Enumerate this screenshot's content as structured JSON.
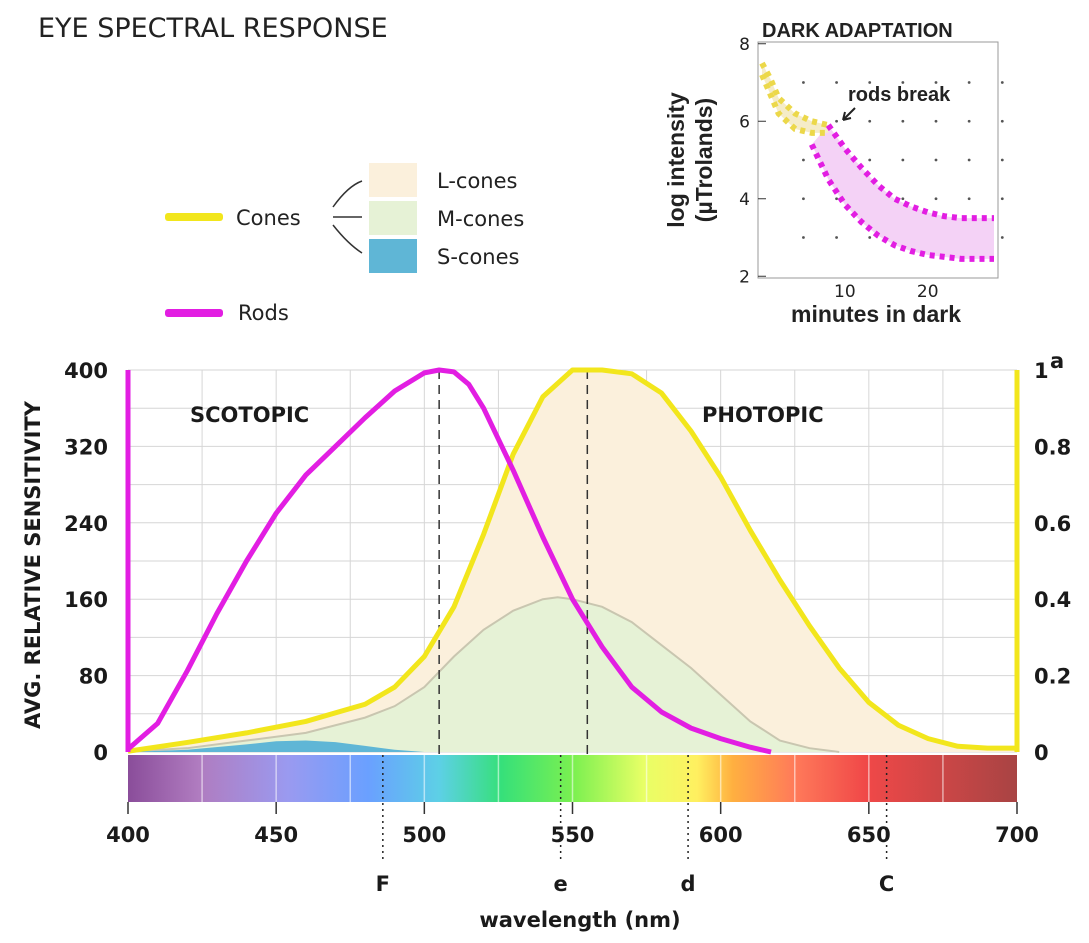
{
  "page_title": "EYE SPECTRAL RESPONSE",
  "legend": {
    "cones_label": "Cones",
    "rods_label": "Rods",
    "cone_types": [
      "L-cones",
      "M-cones",
      "S-cones"
    ]
  },
  "colors": {
    "cones": "#f2e61c",
    "rods": "#e21ee2",
    "l_cones_fill": "#fbf0dc",
    "m_cones_fill": "#e6f2d6",
    "s_cones_fill": "#5fb6d6"
  },
  "chart_data": [
    {
      "type": "line",
      "region_labels": [
        "SCOTOPIC",
        "PHOTOPIC"
      ],
      "xlabel": "wavelength (nm)",
      "ylabel": "AVG. RELATIVE SENSITIVITY",
      "xlim": [
        400,
        700
      ],
      "ylim": [
        0,
        400
      ],
      "y2lim": [
        0,
        1
      ],
      "x_ticks": [
        400,
        450,
        500,
        550,
        600,
        650,
        700
      ],
      "y_ticks": [
        0,
        80,
        160,
        240,
        320,
        400
      ],
      "y2_ticks": [
        "0",
        "0.2",
        "0.4",
        "0.6",
        "0.8",
        "1"
      ],
      "y2_superscript": "a",
      "grid": true,
      "spectral_lines": [
        {
          "label": "F",
          "x": 486
        },
        {
          "label": "e",
          "x": 546
        },
        {
          "label": "d",
          "x": 589
        },
        {
          "label": "C",
          "x": 656
        }
      ],
      "peak_markers": [
        505,
        555
      ],
      "series": [
        {
          "name": "Rods",
          "x": [
            400,
            410,
            420,
            430,
            440,
            450,
            460,
            470,
            480,
            490,
            500,
            505,
            510,
            515,
            520,
            530,
            540,
            550,
            560,
            570,
            580,
            590,
            600,
            610,
            617
          ],
          "values": [
            3,
            30,
            85,
            145,
            200,
            250,
            290,
            320,
            350,
            378,
            397,
            400,
            398,
            385,
            360,
            295,
            225,
            160,
            110,
            68,
            42,
            25,
            14,
            5,
            0
          ]
        },
        {
          "name": "Cones",
          "x": [
            400,
            420,
            440,
            460,
            480,
            490,
            500,
            510,
            520,
            530,
            540,
            550,
            560,
            570,
            580,
            590,
            600,
            610,
            620,
            630,
            640,
            650,
            660,
            670,
            680,
            690,
            700
          ],
          "values": [
            0.002,
            0.025,
            0.05,
            0.08,
            0.125,
            0.17,
            0.25,
            0.38,
            0.57,
            0.78,
            0.93,
            1.0,
            1.0,
            0.99,
            0.94,
            0.84,
            0.72,
            0.58,
            0.45,
            0.33,
            0.22,
            0.13,
            0.07,
            0.035,
            0.015,
            0.01,
            0.01
          ]
        },
        {
          "name": "L-cones",
          "x": [
            400,
            420,
            440,
            460,
            480,
            490,
            500,
            510,
            520,
            530,
            540,
            550,
            560,
            570,
            580,
            590,
            600,
            610,
            620,
            630,
            640,
            650,
            660,
            670,
            680,
            690,
            700
          ],
          "values": [
            0.002,
            0.025,
            0.05,
            0.08,
            0.125,
            0.17,
            0.25,
            0.38,
            0.57,
            0.78,
            0.93,
            1.0,
            1.0,
            0.99,
            0.94,
            0.84,
            0.72,
            0.58,
            0.45,
            0.33,
            0.22,
            0.13,
            0.07,
            0.035,
            0.015,
            0.01,
            0.01
          ]
        },
        {
          "name": "M-cones",
          "x": [
            400,
            420,
            440,
            460,
            480,
            490,
            500,
            510,
            520,
            530,
            540,
            545,
            550,
            560,
            570,
            580,
            590,
            600,
            610,
            620,
            630,
            640
          ],
          "values": [
            0.001,
            0.01,
            0.03,
            0.05,
            0.09,
            0.12,
            0.17,
            0.25,
            0.32,
            0.37,
            0.4,
            0.405,
            0.4,
            0.38,
            0.34,
            0.28,
            0.22,
            0.15,
            0.08,
            0.03,
            0.01,
            0.0
          ]
        },
        {
          "name": "S-cones",
          "x": [
            400,
            420,
            440,
            450,
            460,
            470,
            480,
            490,
            500
          ],
          "values": [
            0.0,
            0.006,
            0.02,
            0.028,
            0.03,
            0.026,
            0.016,
            0.006,
            0.0
          ]
        }
      ]
    },
    {
      "type": "line",
      "title": "DARK ADAPTATION",
      "xlabel": "minutes in dark",
      "ylabel": "log intensity (µTrolands)",
      "xlim": [
        0,
        28
      ],
      "ylim": [
        1.8,
        8.2
      ],
      "x_ticks": [
        10,
        20
      ],
      "y_ticks": [
        2,
        4,
        6,
        8
      ],
      "annotation": "rods break",
      "series": [
        {
          "name": "Cones",
          "x": [
            0,
            1,
            2,
            4,
            6,
            8
          ],
          "values": [
            7.5,
            7.1,
            6.6,
            6.2,
            6.0,
            5.9
          ]
        },
        {
          "name": "Cones",
          "x": [
            0,
            1,
            2,
            4,
            6,
            8
          ],
          "values": [
            7.2,
            6.7,
            6.2,
            5.8,
            5.7,
            5.7
          ]
        },
        {
          "name": "Rods",
          "x": [
            8,
            10,
            12,
            14,
            16,
            18,
            20,
            22,
            24,
            26,
            28
          ],
          "values": [
            5.9,
            5.3,
            4.8,
            4.35,
            4.0,
            3.8,
            3.65,
            3.55,
            3.5,
            3.5,
            3.5
          ]
        },
        {
          "name": "Rods",
          "x": [
            6,
            8,
            10,
            12,
            14,
            16,
            18,
            20,
            22,
            24,
            26,
            28
          ],
          "values": [
            5.4,
            4.5,
            3.85,
            3.4,
            3.05,
            2.8,
            2.65,
            2.55,
            2.5,
            2.45,
            2.45,
            2.45
          ]
        }
      ]
    }
  ]
}
